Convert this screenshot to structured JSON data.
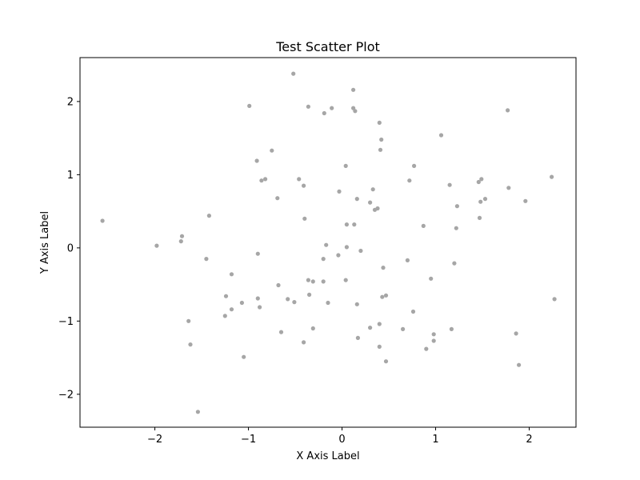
{
  "chart_data": {
    "type": "scatter",
    "title": "Test Scatter Plot",
    "xlabel": "X Axis Label",
    "ylabel": "Y Axis Label",
    "xlim": [
      -2.8,
      2.5
    ],
    "ylim": [
      -2.45,
      2.6
    ],
    "xticks": [
      -2,
      -1,
      0,
      1,
      2
    ],
    "yticks": [
      -2,
      -1,
      0,
      1,
      2
    ],
    "xtick_labels": [
      "−2",
      "−1",
      "0",
      "1",
      "2"
    ],
    "ytick_labels": [
      "−2",
      "−1",
      "0",
      "1",
      "2"
    ],
    "grid": false,
    "point_color": "#a6a6a6",
    "points": [
      {
        "x": -2.56,
        "y": 0.37
      },
      {
        "x": -1.98,
        "y": 0.03
      },
      {
        "x": -1.71,
        "y": 0.16
      },
      {
        "x": -1.72,
        "y": 0.09
      },
      {
        "x": -1.42,
        "y": 0.44
      },
      {
        "x": -1.45,
        "y": -0.15
      },
      {
        "x": -1.18,
        "y": -0.36
      },
      {
        "x": -1.24,
        "y": -0.66
      },
      {
        "x": -1.18,
        "y": -0.84
      },
      {
        "x": -1.25,
        "y": -0.93
      },
      {
        "x": -1.07,
        "y": -0.75
      },
      {
        "x": -1.64,
        "y": -1.0
      },
      {
        "x": -1.62,
        "y": -1.32
      },
      {
        "x": -1.54,
        "y": -2.24
      },
      {
        "x": -1.05,
        "y": -1.49
      },
      {
        "x": -0.99,
        "y": 1.94
      },
      {
        "x": -0.91,
        "y": 1.19
      },
      {
        "x": -0.86,
        "y": 0.92
      },
      {
        "x": -0.82,
        "y": 0.94
      },
      {
        "x": -0.75,
        "y": 1.33
      },
      {
        "x": -0.69,
        "y": 0.68
      },
      {
        "x": -0.9,
        "y": -0.08
      },
      {
        "x": -0.9,
        "y": -0.69
      },
      {
        "x": -0.88,
        "y": -0.81
      },
      {
        "x": -0.68,
        "y": -0.51
      },
      {
        "x": -0.65,
        "y": -1.15
      },
      {
        "x": -0.58,
        "y": -0.7
      },
      {
        "x": -0.51,
        "y": -0.74
      },
      {
        "x": -0.52,
        "y": 2.38
      },
      {
        "x": -0.46,
        "y": 0.94
      },
      {
        "x": -0.41,
        "y": 0.85
      },
      {
        "x": -0.4,
        "y": 0.4
      },
      {
        "x": -0.41,
        "y": -1.29
      },
      {
        "x": -0.36,
        "y": -0.44
      },
      {
        "x": -0.31,
        "y": -0.46
      },
      {
        "x": -0.35,
        "y": -0.64
      },
      {
        "x": -0.31,
        "y": -1.1
      },
      {
        "x": -0.36,
        "y": 1.93
      },
      {
        "x": -0.19,
        "y": 1.84
      },
      {
        "x": -0.11,
        "y": 1.91
      },
      {
        "x": -0.03,
        "y": 0.77
      },
      {
        "x": -0.17,
        "y": 0.04
      },
      {
        "x": -0.2,
        "y": -0.15
      },
      {
        "x": -0.2,
        "y": -0.46
      },
      {
        "x": -0.15,
        "y": -0.75
      },
      {
        "x": -0.04,
        "y": -0.1
      },
      {
        "x": 0.04,
        "y": 1.12
      },
      {
        "x": 0.05,
        "y": 0.32
      },
      {
        "x": 0.05,
        "y": 0.01
      },
      {
        "x": 0.04,
        "y": -0.44
      },
      {
        "x": 0.12,
        "y": 2.16
      },
      {
        "x": 0.12,
        "y": 1.91
      },
      {
        "x": 0.14,
        "y": 1.87
      },
      {
        "x": 0.16,
        "y": 0.67
      },
      {
        "x": 0.13,
        "y": 0.32
      },
      {
        "x": 0.2,
        "y": -0.04
      },
      {
        "x": 0.16,
        "y": -0.77
      },
      {
        "x": 0.17,
        "y": -1.23
      },
      {
        "x": 0.3,
        "y": 0.62
      },
      {
        "x": 0.33,
        "y": 0.8
      },
      {
        "x": 0.35,
        "y": 0.52
      },
      {
        "x": 0.38,
        "y": 0.54
      },
      {
        "x": 0.4,
        "y": 1.71
      },
      {
        "x": 0.42,
        "y": 1.48
      },
      {
        "x": 0.41,
        "y": 1.34
      },
      {
        "x": 0.44,
        "y": -0.27
      },
      {
        "x": 0.43,
        "y": -0.67
      },
      {
        "x": 0.47,
        "y": -0.65
      },
      {
        "x": 0.3,
        "y": -1.09
      },
      {
        "x": 0.4,
        "y": -1.04
      },
      {
        "x": 0.4,
        "y": -1.35
      },
      {
        "x": 0.47,
        "y": -1.55
      },
      {
        "x": 0.72,
        "y": 0.92
      },
      {
        "x": 0.77,
        "y": 1.12
      },
      {
        "x": 0.7,
        "y": -0.17
      },
      {
        "x": 0.65,
        "y": -1.11
      },
      {
        "x": 0.76,
        "y": -0.87
      },
      {
        "x": 0.87,
        "y": 0.3
      },
      {
        "x": 0.95,
        "y": -0.42
      },
      {
        "x": 0.9,
        "y": -1.38
      },
      {
        "x": 0.98,
        "y": -1.18
      },
      {
        "x": 0.98,
        "y": -1.27
      },
      {
        "x": 1.06,
        "y": 1.54
      },
      {
        "x": 1.15,
        "y": 0.86
      },
      {
        "x": 1.2,
        "y": -0.21
      },
      {
        "x": 1.22,
        "y": 0.27
      },
      {
        "x": 1.23,
        "y": 0.57
      },
      {
        "x": 1.17,
        "y": -1.11
      },
      {
        "x": 1.46,
        "y": 0.9
      },
      {
        "x": 1.49,
        "y": 0.94
      },
      {
        "x": 1.48,
        "y": 0.63
      },
      {
        "x": 1.53,
        "y": 0.67
      },
      {
        "x": 1.47,
        "y": 0.41
      },
      {
        "x": 1.77,
        "y": 1.88
      },
      {
        "x": 1.78,
        "y": 0.82
      },
      {
        "x": 1.96,
        "y": 0.64
      },
      {
        "x": 1.86,
        "y": -1.17
      },
      {
        "x": 1.89,
        "y": -1.6
      },
      {
        "x": 2.24,
        "y": 0.97
      },
      {
        "x": 2.27,
        "y": -0.7
      }
    ]
  }
}
